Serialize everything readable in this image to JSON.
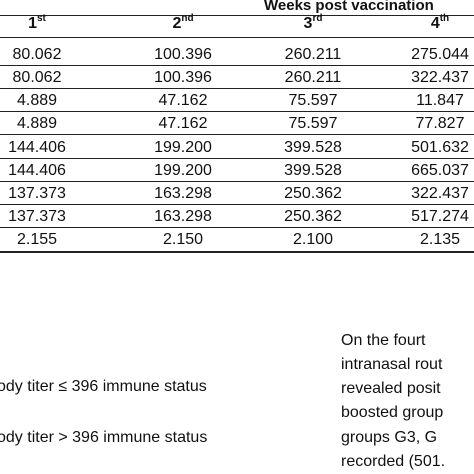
{
  "table": {
    "header_title": "Weeks post vaccination",
    "weeks": [
      {
        "num": "1",
        "suffix": "st"
      },
      {
        "num": "2",
        "suffix": "nd"
      },
      {
        "num": "3",
        "suffix": "rd"
      },
      {
        "num": "4",
        "suffix": "th"
      }
    ],
    "rows": [
      [
        "80.062",
        "100.396",
        "260.211",
        "275.044"
      ],
      [
        "80.062",
        "100.396",
        "260.211",
        "322.437"
      ],
      [
        "4.889",
        "47.162",
        "75.597",
        "11.847"
      ],
      [
        "4.889",
        "47.162",
        "75.597",
        "77.827"
      ],
      [
        "144.406",
        "199.200",
        "399.528",
        "501.632"
      ],
      [
        "144.406",
        "199.200",
        "399.528",
        "665.037"
      ],
      [
        "137.373",
        "163.298",
        "250.362",
        "322.437"
      ],
      [
        "137.373",
        "163.298",
        "250.362",
        "517.274"
      ],
      [
        "2.155",
        "2.150",
        "2.100",
        "2.135"
      ]
    ]
  },
  "footnotes": [
    "ody titer ≤ 396 immune status",
    "ody titer > 396 immune status"
  ],
  "paragraph": [
    "On the fourt",
    "intranasal rout",
    "revealed posit",
    "boosted group",
    "groups G3, G",
    "recorded (501."
  ]
}
